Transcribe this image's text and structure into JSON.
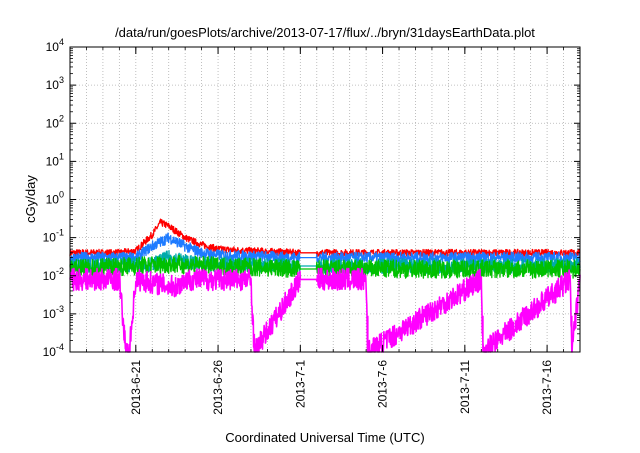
{
  "chart_data": {
    "type": "line",
    "title": "/data/run/goesPlots/archive/2013-07-17/flux/../bryn/31daysEarthData.plot",
    "xlabel": "Coordinated Universal Time (UTC)",
    "ylabel": "cGy/day",
    "y_scale": "log",
    "ylim": [
      0.0001,
      10000
    ],
    "y_ticks": [
      {
        "exp": "-4",
        "value": 0.0001
      },
      {
        "exp": "-3",
        "value": 0.001
      },
      {
        "exp": "-2",
        "value": 0.01
      },
      {
        "exp": "-1",
        "value": 0.1
      },
      {
        "exp": "0",
        "value": 1
      },
      {
        "exp": "1",
        "value": 10
      },
      {
        "exp": "2",
        "value": 100
      },
      {
        "exp": "3",
        "value": 1000
      },
      {
        "exp": "4",
        "value": 10000
      }
    ],
    "xlim": [
      "2013-06-17",
      "2013-07-18"
    ],
    "x_ticks": [
      "2013-6-21",
      "2013-6-26",
      "2013-7-1",
      "2013-7-6",
      "2013-7-11",
      "2013-7-16"
    ],
    "grid": true,
    "legend": "none",
    "data_gap": [
      "2013-07-01",
      "2013-07-02"
    ],
    "series": [
      {
        "color": "#ff0000",
        "values": [
          {
            "x": "2013-06-17",
            "y": 0.04
          },
          {
            "x": "2013-06-20",
            "y": 0.04
          },
          {
            "x": "2013-06-21",
            "y": 0.045
          },
          {
            "x": "2013-06-22",
            "y": 0.12
          },
          {
            "x": "2013-06-22.5",
            "y": 0.25
          },
          {
            "x": "2013-06-23",
            "y": 0.2
          },
          {
            "x": "2013-06-24",
            "y": 0.1
          },
          {
            "x": "2013-06-25",
            "y": 0.065
          },
          {
            "x": "2013-06-26",
            "y": 0.05
          },
          {
            "x": "2013-06-28",
            "y": 0.045
          },
          {
            "x": "2013-07-01",
            "y": 0.04
          },
          {
            "x": "2013-07-02",
            "y": 0.04
          },
          {
            "x": "2013-07-10",
            "y": 0.04
          },
          {
            "x": "2013-07-18",
            "y": 0.04
          }
        ]
      },
      {
        "color": "#1e7bff",
        "values": [
          {
            "x": "2013-06-17",
            "y": 0.03
          },
          {
            "x": "2013-06-21",
            "y": 0.03
          },
          {
            "x": "2013-06-22",
            "y": 0.06
          },
          {
            "x": "2013-06-23",
            "y": 0.1
          },
          {
            "x": "2013-06-24",
            "y": 0.06
          },
          {
            "x": "2013-06-25",
            "y": 0.04
          },
          {
            "x": "2013-06-26",
            "y": 0.035
          },
          {
            "x": "2013-07-01",
            "y": 0.03
          },
          {
            "x": "2013-07-02",
            "y": 0.03
          },
          {
            "x": "2013-07-18",
            "y": 0.03
          }
        ]
      },
      {
        "color": "#00aaaa",
        "values": [
          {
            "x": "2013-06-17",
            "y": 0.018
          },
          {
            "x": "2013-06-22",
            "y": 0.02
          },
          {
            "x": "2013-06-23",
            "y": 0.03
          },
          {
            "x": "2013-06-25",
            "y": 0.02
          },
          {
            "x": "2013-07-01",
            "y": 0.018
          },
          {
            "x": "2013-07-02",
            "y": 0.018
          },
          {
            "x": "2013-07-18",
            "y": 0.018
          }
        ]
      },
      {
        "color": "#00c000",
        "values": [
          {
            "x": "2013-06-17",
            "y": 0.015
          },
          {
            "x": "2013-06-23",
            "y": 0.02
          },
          {
            "x": "2013-07-01",
            "y": 0.015
          },
          {
            "x": "2013-07-02",
            "y": 0.015
          },
          {
            "x": "2013-07-18",
            "y": 0.015
          }
        ]
      },
      {
        "color": "#ff00ff",
        "values": [
          {
            "x": "2013-06-17",
            "y": 0.008
          },
          {
            "x": "2013-06-20",
            "y": 0.008
          },
          {
            "x": "2013-06-20.4",
            "y": 0.0001
          },
          {
            "x": "2013-06-20.6",
            "y": 0.0001
          },
          {
            "x": "2013-06-21",
            "y": 0.008
          },
          {
            "x": "2013-06-23.5",
            "y": 0.005
          },
          {
            "x": "2013-06-24",
            "y": 0.008
          },
          {
            "x": "2013-06-28",
            "y": 0.008
          },
          {
            "x": "2013-06-28.2",
            "y": 0.0001
          },
          {
            "x": "2013-07-01",
            "y": 0.008
          },
          {
            "x": "2013-07-02",
            "y": 0.008
          },
          {
            "x": "2013-07-05",
            "y": 0.008
          },
          {
            "x": "2013-07-05.1",
            "y": 0.0001
          },
          {
            "x": "2013-07-12",
            "y": 0.008
          },
          {
            "x": "2013-07-12.1",
            "y": 0.0001
          },
          {
            "x": "2013-07-17.4",
            "y": 0.008
          },
          {
            "x": "2013-07-17.5",
            "y": 0.0001
          },
          {
            "x": "2013-07-18",
            "y": 0.008
          }
        ]
      }
    ]
  }
}
